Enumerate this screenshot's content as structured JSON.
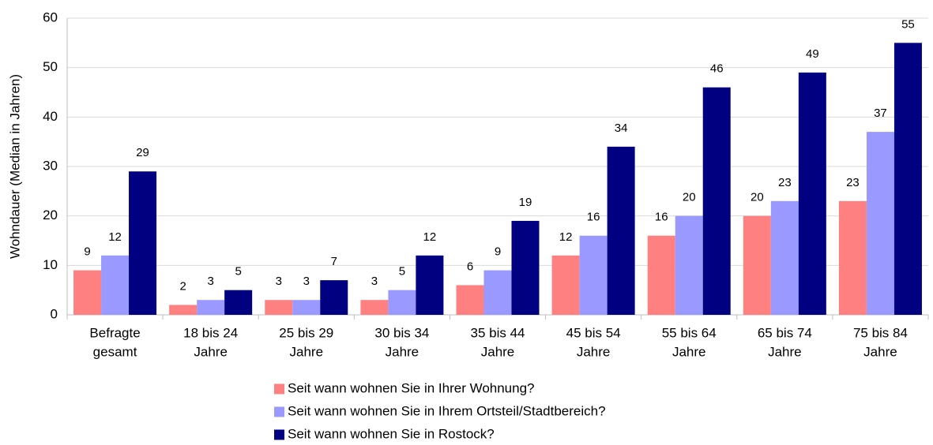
{
  "chart_data": {
    "type": "bar",
    "y_label": "Wohndauer (Median in Jahren)",
    "categories": [
      [
        "Befragte",
        "gesamt"
      ],
      [
        "18 bis 24",
        "Jahre"
      ],
      [
        "25 bis 29",
        "Jahre"
      ],
      [
        "30 bis 34",
        "Jahre"
      ],
      [
        "35 bis 44",
        "Jahre"
      ],
      [
        "45 bis 54",
        "Jahre"
      ],
      [
        "55 bis 64",
        "Jahre"
      ],
      [
        "65 bis 74",
        "Jahre"
      ],
      [
        "75 bis 84",
        "Jahre"
      ]
    ],
    "series": [
      {
        "name": "Seit wann wohnen Sie in Ihrer Wohnung?",
        "color": "#ff8080",
        "values": [
          9,
          2,
          3,
          3,
          6,
          12,
          16,
          20,
          23
        ]
      },
      {
        "name": "Seit wann wohnen Sie in Ihrem Ortsteil/Stadtbereich?",
        "color": "#9999ff",
        "values": [
          12,
          3,
          3,
          5,
          9,
          16,
          20,
          23,
          37
        ]
      },
      {
        "name": "Seit wann wohnen Sie in Rostock?",
        "color": "#000080",
        "values": [
          29,
          5,
          7,
          12,
          19,
          34,
          46,
          49,
          55
        ]
      }
    ],
    "ylim": [
      0,
      60
    ],
    "yticks": [
      0,
      10,
      20,
      30,
      40,
      50,
      60
    ],
    "grid": true,
    "legend": "bottom"
  }
}
